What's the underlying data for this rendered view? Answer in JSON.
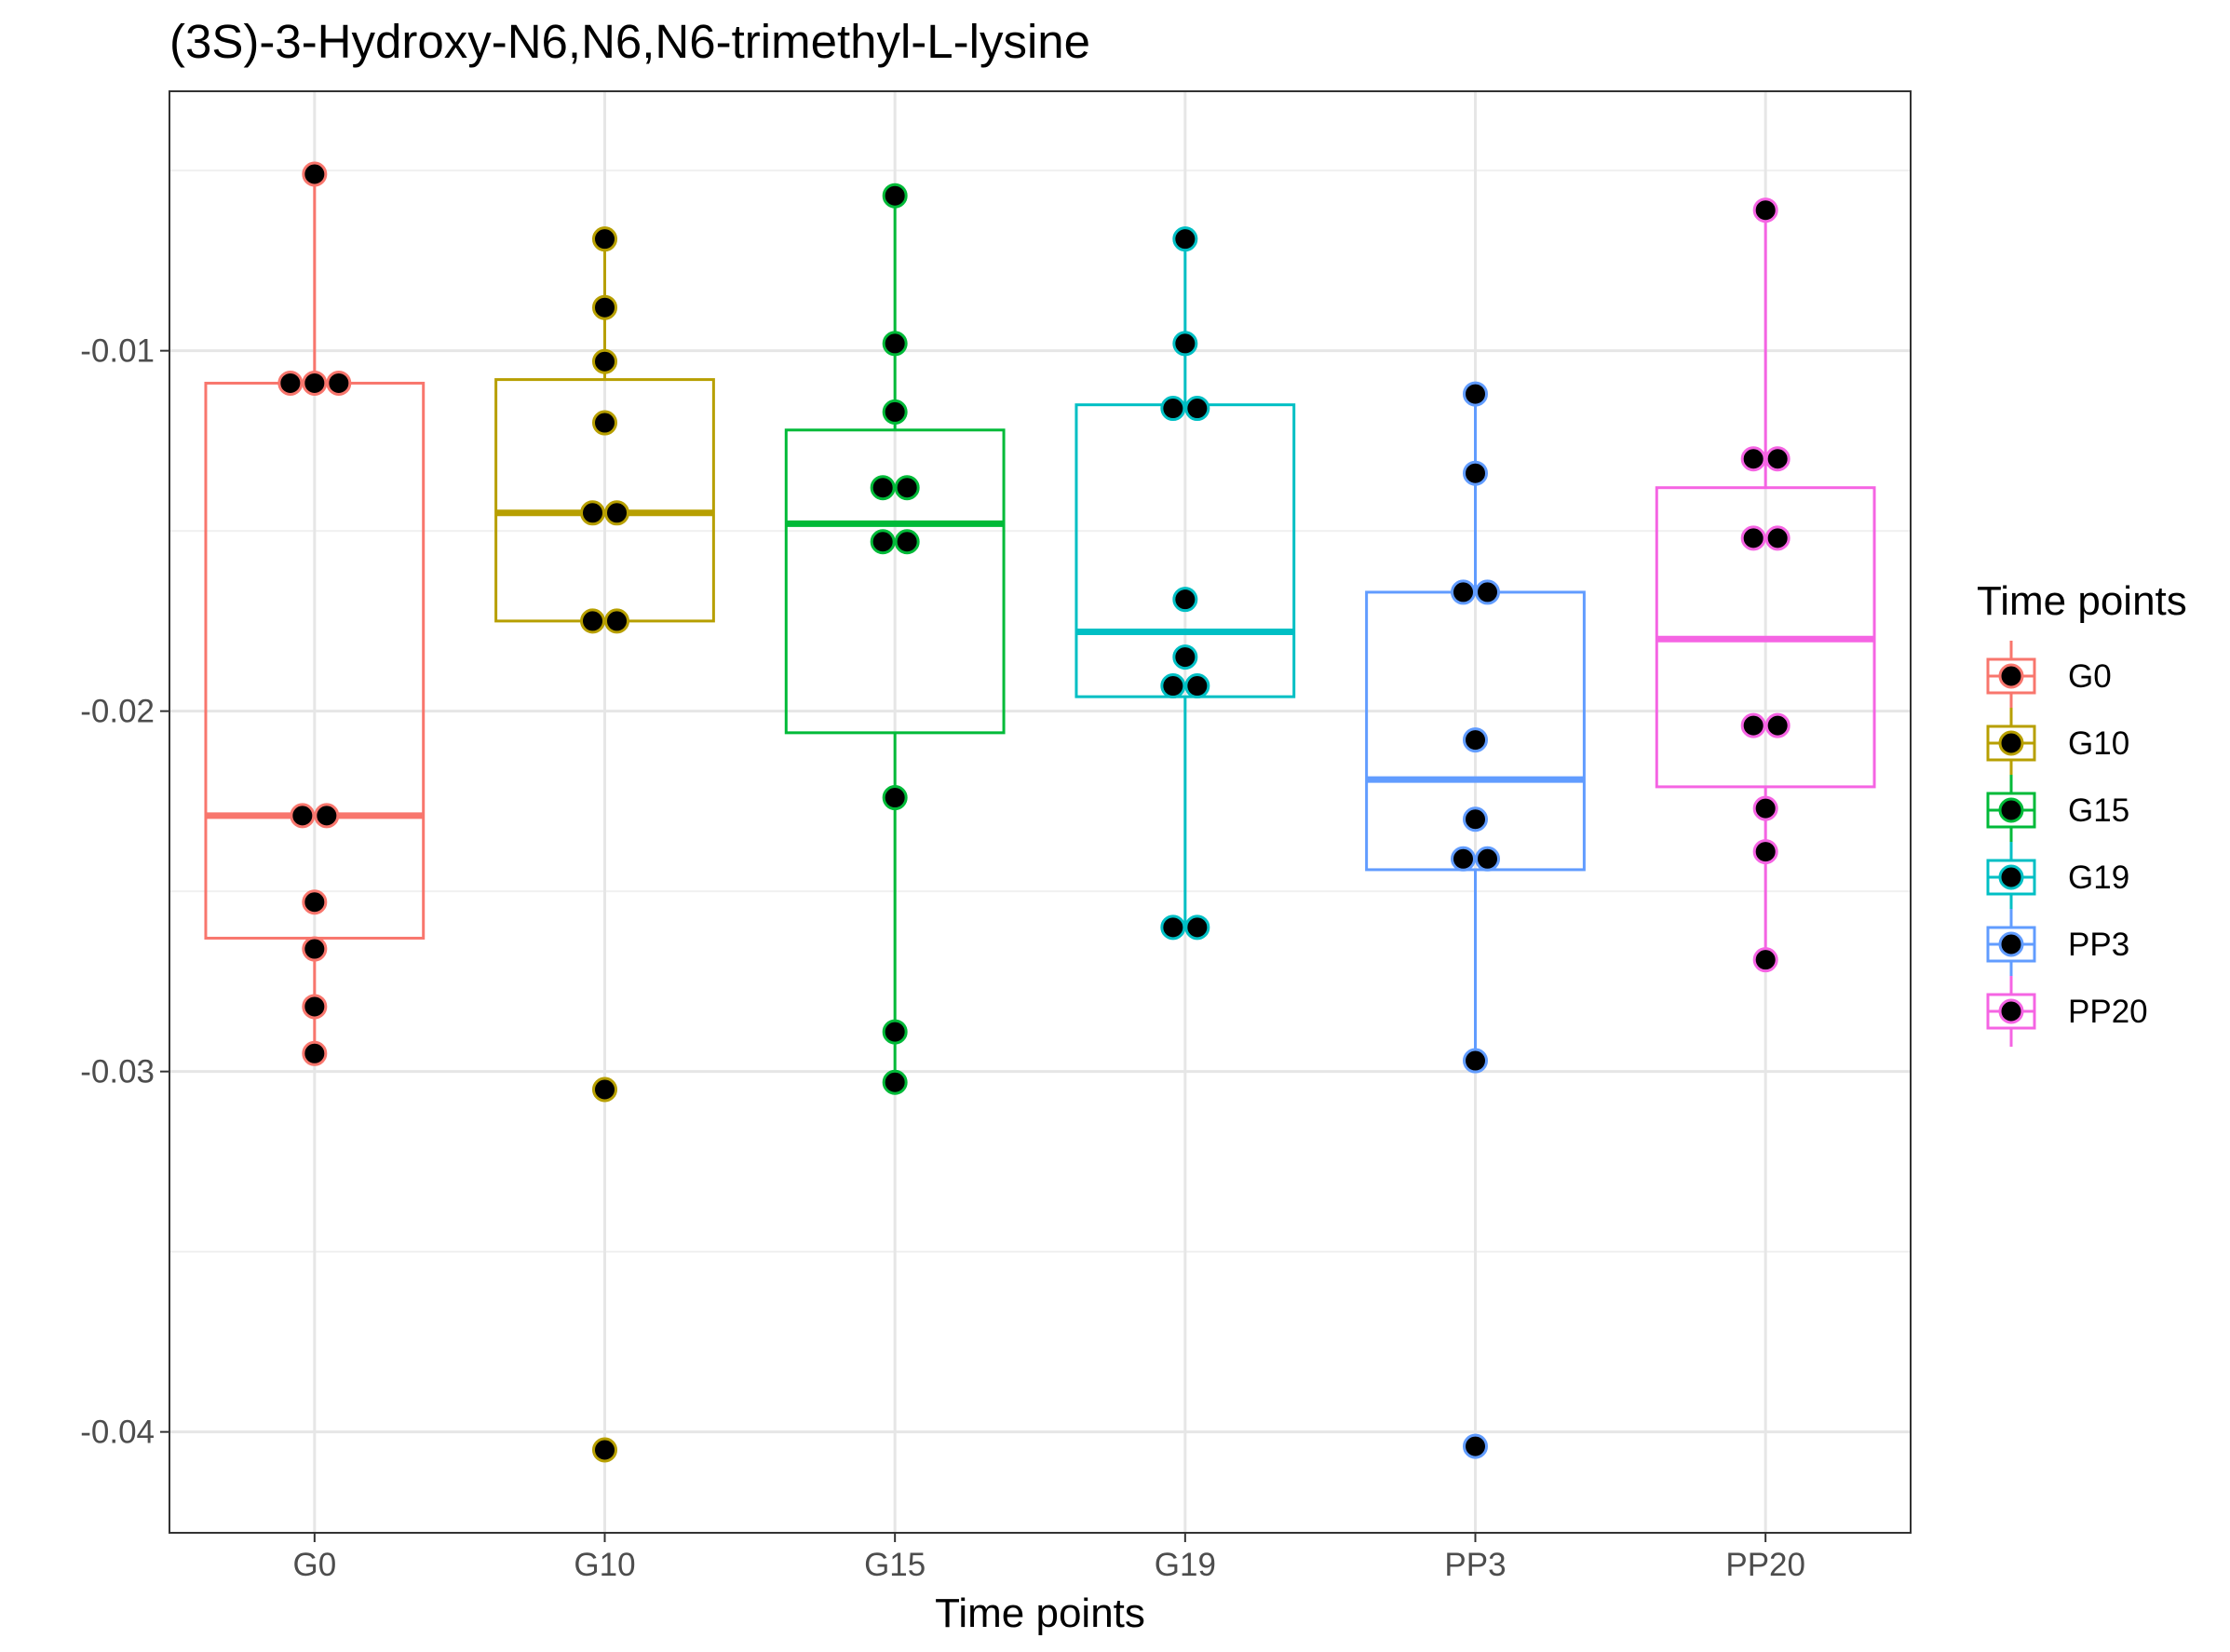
{
  "chart_data": {
    "type": "box",
    "title": "(3S)-3-Hydroxy-N6,N6,N6-trimethyl-L-lysine",
    "xlabel": "Time points",
    "ylabel": "",
    "ylim": [
      -0.0428,
      -0.0028
    ],
    "yticks": [
      -0.04,
      -0.03,
      -0.02,
      -0.01
    ],
    "ytick_labels": [
      "-0.04",
      "-0.03",
      "-0.02",
      "-0.01"
    ],
    "grid": true,
    "legend": {
      "title": "Time points",
      "position": "right"
    },
    "categories": [
      "G0",
      "G10",
      "G15",
      "G19",
      "PP3",
      "PP20"
    ],
    "series": [
      {
        "name": "G0",
        "color": "#F8766D",
        "box": {
          "min": -0.0295,
          "q1": -0.0263,
          "median": -0.0229,
          "q3": -0.0109,
          "max": -0.0051
        },
        "points": [
          -0.0051,
          -0.0109,
          -0.0109,
          -0.0109,
          -0.0229,
          -0.0229,
          -0.0253,
          -0.0266,
          -0.0282,
          -0.0295
        ]
      },
      {
        "name": "G10",
        "color": "#B79F00",
        "box": {
          "min": -0.0175,
          "q1": -0.0175,
          "median": -0.0145,
          "q3": -0.0108,
          "max": -0.0069
        },
        "points": [
          -0.0069,
          -0.0088,
          -0.0103,
          -0.012,
          -0.0145,
          -0.0145,
          -0.0175,
          -0.0175,
          -0.0305,
          -0.0405
        ]
      },
      {
        "name": "G15",
        "color": "#00BA38",
        "box": {
          "min": -0.0303,
          "q1": -0.0206,
          "median": -0.0148,
          "q3": -0.0122,
          "max": -0.0057
        },
        "points": [
          -0.0057,
          -0.0098,
          -0.0117,
          -0.0138,
          -0.0138,
          -0.0153,
          -0.0153,
          -0.0224,
          -0.0289,
          -0.0303
        ]
      },
      {
        "name": "G19",
        "color": "#00BFC4",
        "box": {
          "min": -0.026,
          "q1": -0.0196,
          "median": -0.0178,
          "q3": -0.0115,
          "max": -0.0069
        },
        "points": [
          -0.0069,
          -0.0098,
          -0.0116,
          -0.0116,
          -0.0169,
          -0.0185,
          -0.0193,
          -0.0193,
          -0.026,
          -0.026
        ]
      },
      {
        "name": "PP3",
        "color": "#619CFF",
        "box": {
          "min": -0.0297,
          "q1": -0.0244,
          "median": -0.0219,
          "q3": -0.0167,
          "max": -0.0112
        },
        "points": [
          -0.0112,
          -0.0134,
          -0.0167,
          -0.0167,
          -0.0208,
          -0.023,
          -0.0241,
          -0.0241,
          -0.0297,
          -0.0404
        ]
      },
      {
        "name": "PP20",
        "color": "#F564E3",
        "box": {
          "min": -0.0269,
          "q1": -0.0221,
          "median": -0.018,
          "q3": -0.0138,
          "max": -0.0061
        },
        "points": [
          -0.0061,
          -0.013,
          -0.013,
          -0.0152,
          -0.0152,
          -0.0204,
          -0.0204,
          -0.0227,
          -0.0239,
          -0.0269
        ]
      }
    ]
  }
}
